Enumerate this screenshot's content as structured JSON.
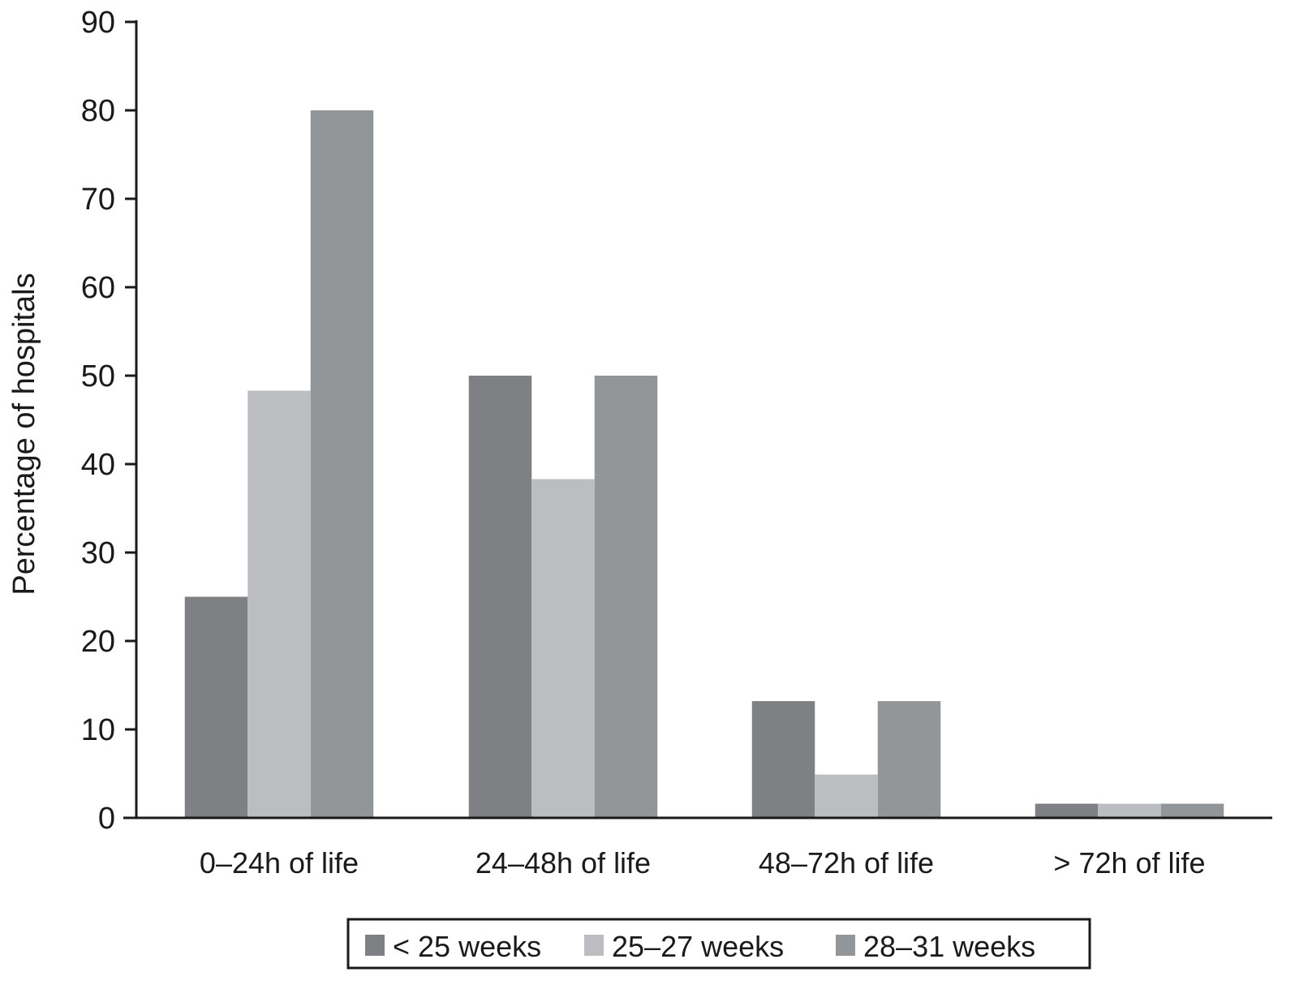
{
  "chart_data": {
    "type": "bar",
    "title": "",
    "xlabel": "",
    "ylabel": "Percentage of hospitals",
    "ylim": [
      0,
      90
    ],
    "yticks": [
      0,
      10,
      20,
      30,
      40,
      50,
      60,
      70,
      80,
      90
    ],
    "grid": false,
    "legend_placement": "bottom",
    "categories": [
      "0–24h of life",
      "24–48h of life",
      "48–72h of life",
      "> 72h of life"
    ],
    "series": [
      {
        "name": "< 25 weeks",
        "color": "#7f8084",
        "values": [
          25,
          50,
          13.2,
          1.6
        ]
      },
      {
        "name": "25–27 weeks",
        "color": "#bcbdc1",
        "values": [
          48.3,
          38.3,
          4.9,
          1.6
        ]
      },
      {
        "name": "28–31 weeks",
        "color": "#939699",
        "values": [
          80,
          50,
          13.2,
          1.6
        ]
      }
    ]
  }
}
